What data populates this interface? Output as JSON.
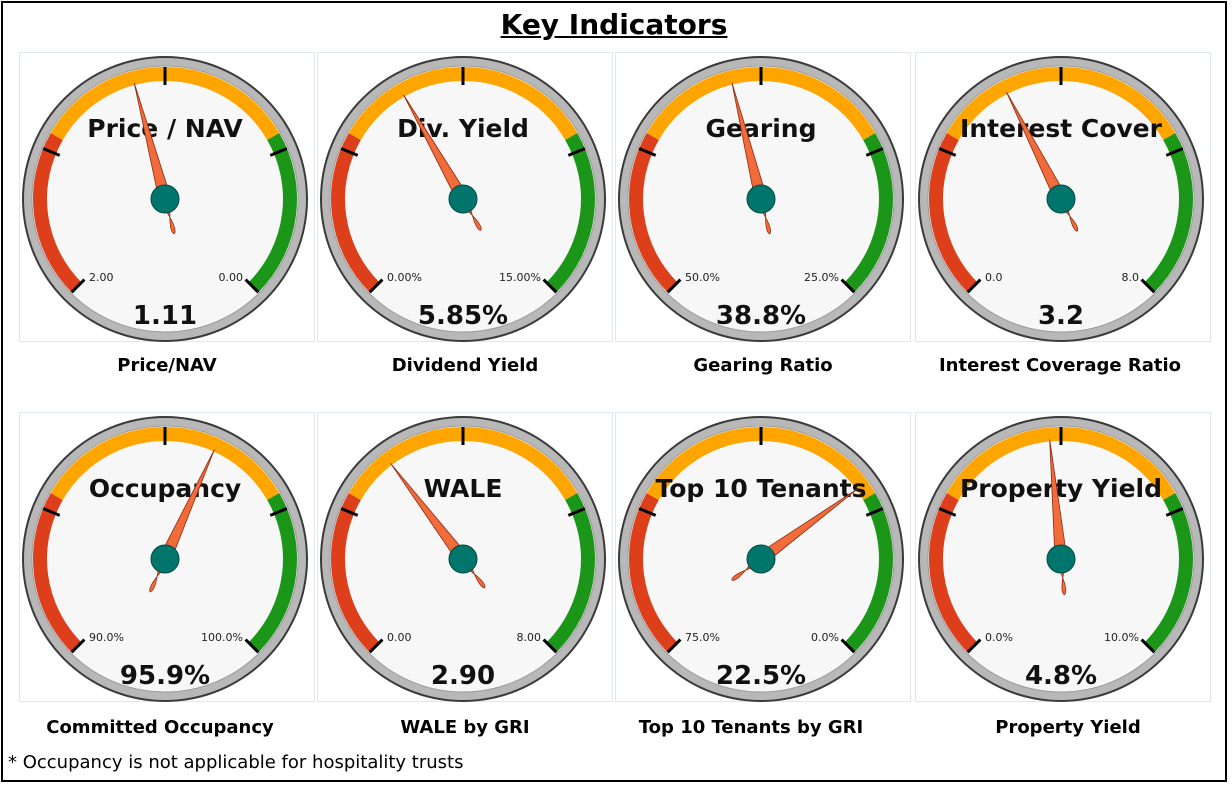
{
  "title": "Key Indicators",
  "footnote": "* Occupancy is not applicable for hospitality trusts",
  "colors": {
    "red": "#dd3f1b",
    "orange": "#ffa500",
    "green": "#1b9618",
    "needle": "#f26b3a",
    "hub": "#00756b",
    "face": "#f7f7f7",
    "rim": "#b8b8b8"
  },
  "chart_data": [
    {
      "type": "gauge",
      "title": "Price / NAV",
      "caption": "Price/NAV",
      "value": 1.11,
      "display": "1.11",
      "left_label": "2.00",
      "right_label": "0.00",
      "min_value": 2.0,
      "max_value": 0.0
    },
    {
      "type": "gauge",
      "title": "Div. Yield",
      "caption": "Dividend Yield",
      "value": 5.85,
      "display": "5.85%",
      "left_label": "0.00%",
      "right_label": "15.00%",
      "min_value": 0.0,
      "max_value": 15.0
    },
    {
      "type": "gauge",
      "title": "Gearing",
      "caption": "Gearing Ratio",
      "value": 38.8,
      "display": "38.8%",
      "left_label": "50.0%",
      "right_label": "25.0%",
      "min_value": 50.0,
      "max_value": 25.0
    },
    {
      "type": "gauge",
      "title": "Interest Cover",
      "caption": "Interest Coverage Ratio",
      "value": 3.2,
      "display": "3.2",
      "left_label": "0.0",
      "right_label": "8.0",
      "min_value": 0.0,
      "max_value": 8.0
    },
    {
      "type": "gauge",
      "title": "Occupancy",
      "caption": "Committed Occupancy",
      "value": 95.9,
      "display": "95.9%",
      "left_label": "90.0%",
      "right_label": "100.0%",
      "min_value": 90.0,
      "max_value": 100.0
    },
    {
      "type": "gauge",
      "title": "WALE",
      "caption": "WALE by GRI",
      "value": 2.9,
      "display": "2.90",
      "left_label": "0.00",
      "right_label": "8.00",
      "min_value": 0.0,
      "max_value": 8.0
    },
    {
      "type": "gauge",
      "title": "Top 10 Tenants",
      "caption": "Top 10 Tenants by GRI",
      "value": 22.5,
      "display": "22.5%",
      "left_label": "75.0%",
      "right_label": "0.0%",
      "min_value": 75.0,
      "max_value": 0.0
    },
    {
      "type": "gauge",
      "title": "Property Yield",
      "caption": "Property Yield",
      "value": 4.8,
      "display": "4.8%",
      "left_label": "0.0%",
      "right_label": "10.0%",
      "min_value": 0.0,
      "max_value": 10.0
    }
  ]
}
